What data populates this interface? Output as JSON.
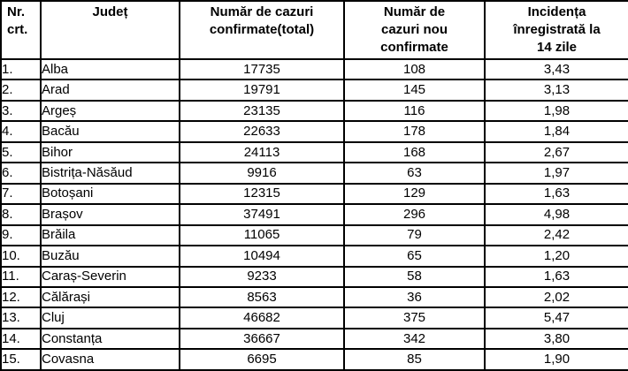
{
  "table": {
    "columns": [
      "Nr.\ncrt.",
      "Județ",
      "Număr de cazuri\nconfirmate(total)",
      "Număr de\ncazuri nou\nconfirmate",
      "Incidența\nînregistrată la\n14 zile"
    ],
    "rows": [
      {
        "nr": "1.",
        "judet": "Alba",
        "total": "17735",
        "nou": "108",
        "incidenta": "3,43"
      },
      {
        "nr": "2.",
        "judet": "Arad",
        "total": "19791",
        "nou": "145",
        "incidenta": "3,13"
      },
      {
        "nr": "3.",
        "judet": "Argeș",
        "total": "23135",
        "nou": "116",
        "incidenta": "1,98"
      },
      {
        "nr": "4.",
        "judet": "Bacău",
        "total": "22633",
        "nou": "178",
        "incidenta": "1,84"
      },
      {
        "nr": "5.",
        "judet": "Bihor",
        "total": "24113",
        "nou": "168",
        "incidenta": "2,67"
      },
      {
        "nr": "6.",
        "judet": "Bistrița-Năsăud",
        "total": "9916",
        "nou": "63",
        "incidenta": "1,97"
      },
      {
        "nr": "7.",
        "judet": "Botoșani",
        "total": "12315",
        "nou": "129",
        "incidenta": "1,63"
      },
      {
        "nr": "8.",
        "judet": "Brașov",
        "total": "37491",
        "nou": "296",
        "incidenta": "4,98"
      },
      {
        "nr": "9.",
        "judet": "Brăila",
        "total": "11065",
        "nou": "79",
        "incidenta": "2,42"
      },
      {
        "nr": "10.",
        "judet": "Buzău",
        "total": "10494",
        "nou": "65",
        "incidenta": "1,20"
      },
      {
        "nr": "11.",
        "judet": "Caraș-Severin",
        "total": "9233",
        "nou": "58",
        "incidenta": "1,63"
      },
      {
        "nr": "12.",
        "judet": "Călărași",
        "total": "8563",
        "nou": "36",
        "incidenta": "2,02"
      },
      {
        "nr": "13.",
        "judet": "Cluj",
        "total": "46682",
        "nou": "375",
        "incidenta": "5,47"
      },
      {
        "nr": "14.",
        "judet": "Constanța",
        "total": "36667",
        "nou": "342",
        "incidenta": "3,80"
      },
      {
        "nr": "15.",
        "judet": "Covasna",
        "total": "6695",
        "nou": "85",
        "incidenta": "1,90"
      }
    ]
  },
  "colors": {
    "border": "#000000",
    "text": "#000000",
    "background": "#ffffff"
  }
}
